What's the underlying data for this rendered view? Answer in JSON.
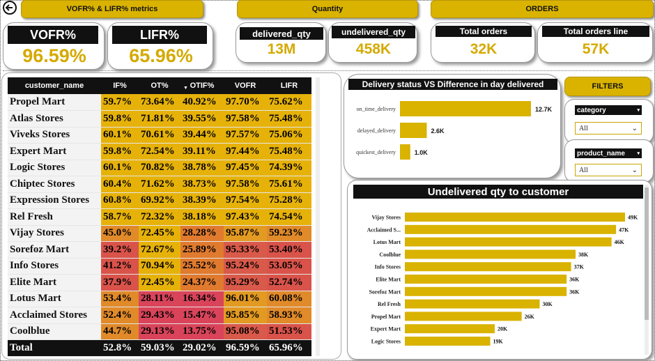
{
  "headers": {
    "vofr_lifr": "VOFR% & LIFR% metrics",
    "quantity": "Quantity",
    "orders": "ORDERS"
  },
  "kpis": {
    "vofr": {
      "label": "VOFR%",
      "value": "96.59%"
    },
    "lifr": {
      "label": "LIFR%",
      "value": "65.96%"
    },
    "delivered_qty": {
      "label": "delivered_qty",
      "value": "13M"
    },
    "undelivered_qty": {
      "label": "undelivered_qty",
      "value": "458K"
    },
    "total_orders": {
      "label": "Total orders",
      "value": "32K"
    },
    "total_orders_line": {
      "label": "Total orders line",
      "value": "57K"
    }
  },
  "matrix": {
    "columns": [
      "customer_name",
      "IF%",
      "OT%",
      "OTIF%",
      "VOFR",
      "LIFR"
    ],
    "rows": [
      {
        "name": "Propel Mart",
        "if": "59.7%",
        "ot": "73.64%",
        "otif": "40.92%",
        "vofr": "97.70%",
        "lifr": "75.62%"
      },
      {
        "name": "Atlas Stores",
        "if": "59.8%",
        "ot": "71.81%",
        "otif": "39.55%",
        "vofr": "97.58%",
        "lifr": "75.48%"
      },
      {
        "name": "Viveks Stores",
        "if": "60.1%",
        "ot": "70.61%",
        "otif": "39.44%",
        "vofr": "97.57%",
        "lifr": "75.06%"
      },
      {
        "name": "Expert Mart",
        "if": "59.8%",
        "ot": "72.54%",
        "otif": "39.11%",
        "vofr": "97.44%",
        "lifr": "75.48%"
      },
      {
        "name": "Logic Stores",
        "if": "60.1%",
        "ot": "70.82%",
        "otif": "38.78%",
        "vofr": "97.45%",
        "lifr": "74.39%"
      },
      {
        "name": "Chiptec Stores",
        "if": "60.4%",
        "ot": "71.62%",
        "otif": "38.73%",
        "vofr": "97.58%",
        "lifr": "75.61%"
      },
      {
        "name": "Expression Stores",
        "if": "60.8%",
        "ot": "69.92%",
        "otif": "38.39%",
        "vofr": "97.54%",
        "lifr": "75.28%"
      },
      {
        "name": "Rel Fresh",
        "if": "58.7%",
        "ot": "72.32%",
        "otif": "38.18%",
        "vofr": "97.43%",
        "lifr": "74.54%"
      },
      {
        "name": "Vijay Stores",
        "if": "45.0%",
        "ot": "72.45%",
        "otif": "28.28%",
        "vofr": "95.87%",
        "lifr": "59.23%"
      },
      {
        "name": "Sorefoz Mart",
        "if": "39.2%",
        "ot": "72.67%",
        "otif": "25.89%",
        "vofr": "95.33%",
        "lifr": "53.40%"
      },
      {
        "name": "Info Stores",
        "if": "41.2%",
        "ot": "70.94%",
        "otif": "25.52%",
        "vofr": "95.24%",
        "lifr": "53.05%"
      },
      {
        "name": "Elite Mart",
        "if": "37.9%",
        "ot": "72.45%",
        "otif": "24.37%",
        "vofr": "95.29%",
        "lifr": "52.74%"
      },
      {
        "name": "Lotus Mart",
        "if": "53.4%",
        "ot": "28.11%",
        "otif": "16.34%",
        "vofr": "96.01%",
        "lifr": "60.08%"
      },
      {
        "name": "Acclaimed Stores",
        "if": "52.4%",
        "ot": "29.43%",
        "otif": "15.47%",
        "vofr": "95.85%",
        "lifr": "58.93%"
      },
      {
        "name": "Coolblue",
        "if": "44.7%",
        "ot": "29.13%",
        "otif": "13.75%",
        "vofr": "95.08%",
        "lifr": "51.53%"
      }
    ],
    "total": {
      "name": "Total",
      "if": "52.8%",
      "ot": "59.03%",
      "otif": "29.02%",
      "vofr": "96.59%",
      "lifr": "65.96%"
    }
  },
  "delivery_chart": {
    "title": "Delivery status VS Difference in day delivered",
    "categories": [
      "on_time_delivery",
      "delayed_delivery",
      "quickest_delivery"
    ],
    "values": [
      12.7,
      2.6,
      1.0
    ],
    "labels": [
      "12.7K",
      "2.6K",
      "1.0K"
    ]
  },
  "filters": {
    "title": "FILTERS",
    "category": {
      "label": "category",
      "value": "All"
    },
    "product_name": {
      "label": "product_name",
      "value": "All"
    }
  },
  "undelivered_chart": {
    "title": "Undelivered qty to customer",
    "categories": [
      "Vijay Stores",
      "Acclaimed S...",
      "Lotus Mart",
      "Coolblue",
      "Info Stores",
      "Elite Mart",
      "Sorefoz Mart",
      "Rel Fresh",
      "Propel Mart",
      "Expert Mart",
      "Logic Stores"
    ],
    "values": [
      49,
      47,
      46,
      38,
      37,
      36,
      36,
      30,
      26,
      20,
      19
    ],
    "labels": [
      "49K",
      "47K",
      "46K",
      "38K",
      "37K",
      "36K",
      "36K",
      "30K",
      "26K",
      "20K",
      "19K"
    ]
  },
  "chart_data": [
    {
      "type": "bar",
      "title": "Delivery status VS Difference in day delivered",
      "categories": [
        "on_time_delivery",
        "delayed_delivery",
        "quickest_delivery"
      ],
      "values": [
        12700,
        2600,
        1000
      ]
    },
    {
      "type": "bar",
      "title": "Undelivered qty to customer",
      "categories": [
        "Vijay Stores",
        "Acclaimed S...",
        "Lotus Mart",
        "Coolblue",
        "Info Stores",
        "Elite Mart",
        "Sorefoz Mart",
        "Rel Fresh",
        "Propel Mart",
        "Expert Mart",
        "Logic Stores"
      ],
      "values": [
        49000,
        47000,
        46000,
        38000,
        37000,
        36000,
        36000,
        30000,
        26000,
        20000,
        19000
      ]
    }
  ],
  "colors": {
    "accent": "#d9b300",
    "value_gold": "#d4aa00",
    "dark": "#111111"
  }
}
